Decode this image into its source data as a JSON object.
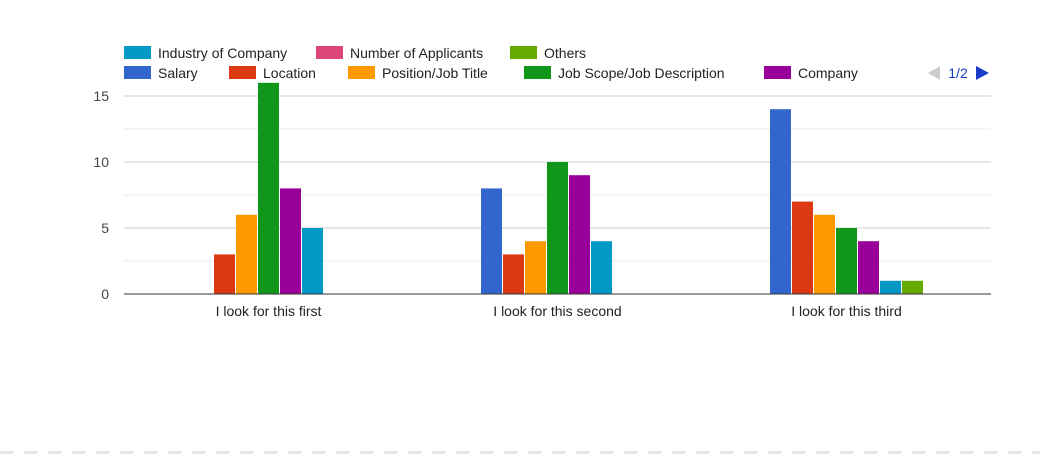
{
  "chart_data": {
    "type": "bar",
    "title": "",
    "xlabel": "",
    "ylabel": "",
    "ylim": [
      0,
      17
    ],
    "yticks": [
      0,
      5,
      10,
      15
    ],
    "grid": true,
    "legend_position": "top",
    "categories": [
      "I look for this first",
      "I look for this second",
      "I look for this third"
    ],
    "series": [
      {
        "name": "Salary",
        "color": "#3366cc",
        "values": [
          0,
          8,
          14
        ]
      },
      {
        "name": "Location",
        "color": "#dc3912",
        "values": [
          3,
          3,
          7
        ]
      },
      {
        "name": "Position/Job Title",
        "color": "#ff9900",
        "values": [
          6,
          4,
          6
        ]
      },
      {
        "name": "Job Scope/Job Description",
        "color": "#109618",
        "values": [
          16,
          10,
          5
        ]
      },
      {
        "name": "Company",
        "color": "#990099",
        "values": [
          8,
          9,
          4
        ]
      },
      {
        "name": "Industry of Company",
        "color": "#0099c6",
        "values": [
          5,
          4,
          1
        ]
      },
      {
        "name": "Number of Applicants",
        "color": "#dd4477",
        "values": [
          0,
          0,
          0
        ]
      },
      {
        "name": "Others",
        "color": "#66aa00",
        "values": [
          0,
          0,
          1
        ]
      }
    ],
    "legend_row_top": [
      "Industry of Company",
      "Number of Applicants",
      "Others"
    ],
    "legend_row_bottom": [
      "Salary",
      "Location",
      "Position/Job Title",
      "Job Scope/Job Description",
      "Company"
    ]
  },
  "legend_pager": {
    "label": "1/2",
    "prev_icon": "triangle-left-icon",
    "next_icon": "triangle-right-icon",
    "prev_color": "#cccccc",
    "next_color": "#1a3cc8"
  }
}
